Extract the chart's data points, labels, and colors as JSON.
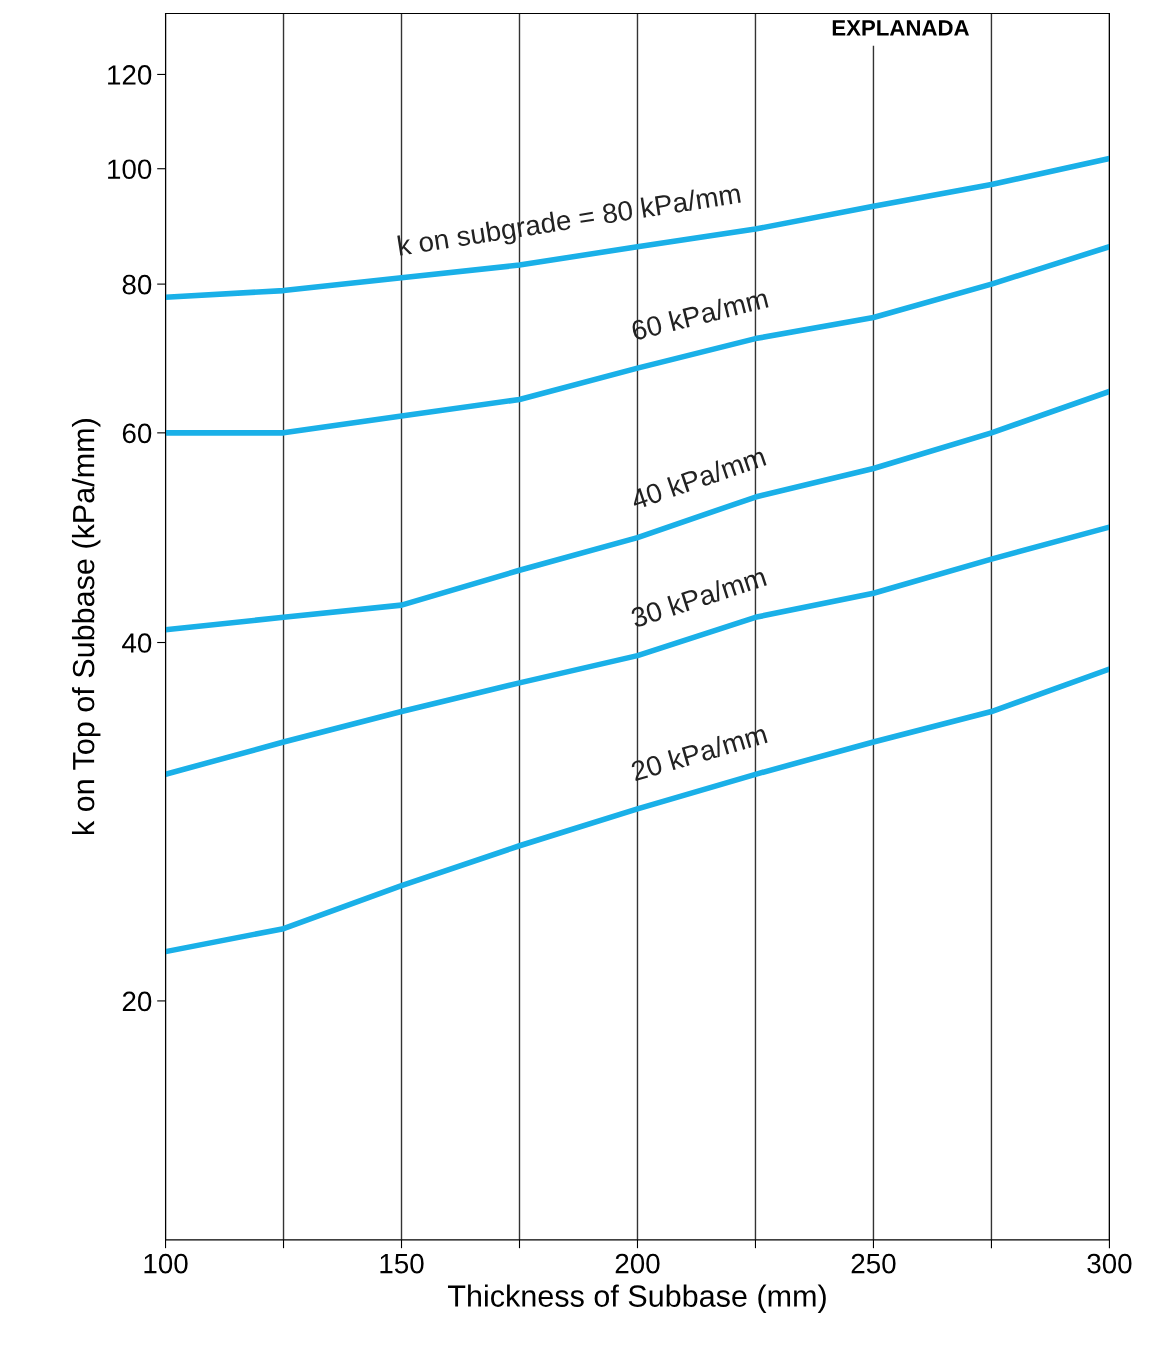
{
  "chart_data": {
    "type": "line",
    "xlabel": "Thickness of Subbase (mm)",
    "ylabel": "k on Top of Subbase (kPa/mm)",
    "annotations": [
      "EXPLANADA"
    ],
    "x": [
      100,
      125,
      150,
      175,
      200,
      225,
      250,
      275,
      300
    ],
    "series": [
      {
        "name": "k on subgrade = 80 kPa/mm",
        "color": "#1ab0e8",
        "values": [
          78,
          79,
          81,
          83,
          86,
          89,
          93,
          97,
          102
        ]
      },
      {
        "name": "60 kPa/mm",
        "color": "#1ab0e8",
        "values": [
          60,
          60,
          62,
          64,
          68,
          72,
          75,
          80,
          86
        ]
      },
      {
        "name": "40 kPa/mm",
        "color": "#1ab0e8",
        "values": [
          41,
          42,
          43,
          46,
          49,
          53,
          56,
          60,
          65
        ]
      },
      {
        "name": "30 kPa/mm",
        "color": "#1ab0e8",
        "values": [
          31,
          33,
          35,
          37,
          39,
          42,
          44,
          47,
          50
        ]
      },
      {
        "name": "20 kPa/mm",
        "color": "#1ab0e8",
        "values": [
          22,
          23,
          25,
          27,
          29,
          31,
          33,
          35,
          38
        ]
      }
    ],
    "log": "y",
    "xlim": [
      100,
      300
    ],
    "ylim": [
      12.6,
      135
    ],
    "xticks": [
      100,
      {
        "value": 125,
        "label": null
      },
      150,
      {
        "value": 175,
        "label": null
      },
      200,
      {
        "value": 225,
        "label": null
      },
      250,
      {
        "value": 275,
        "label": null
      },
      300
    ],
    "yticks": [
      20,
      40,
      60,
      80,
      100,
      120
    ],
    "grid": "x",
    "legend": false,
    "marker": "none",
    "line_style": "solid"
  }
}
